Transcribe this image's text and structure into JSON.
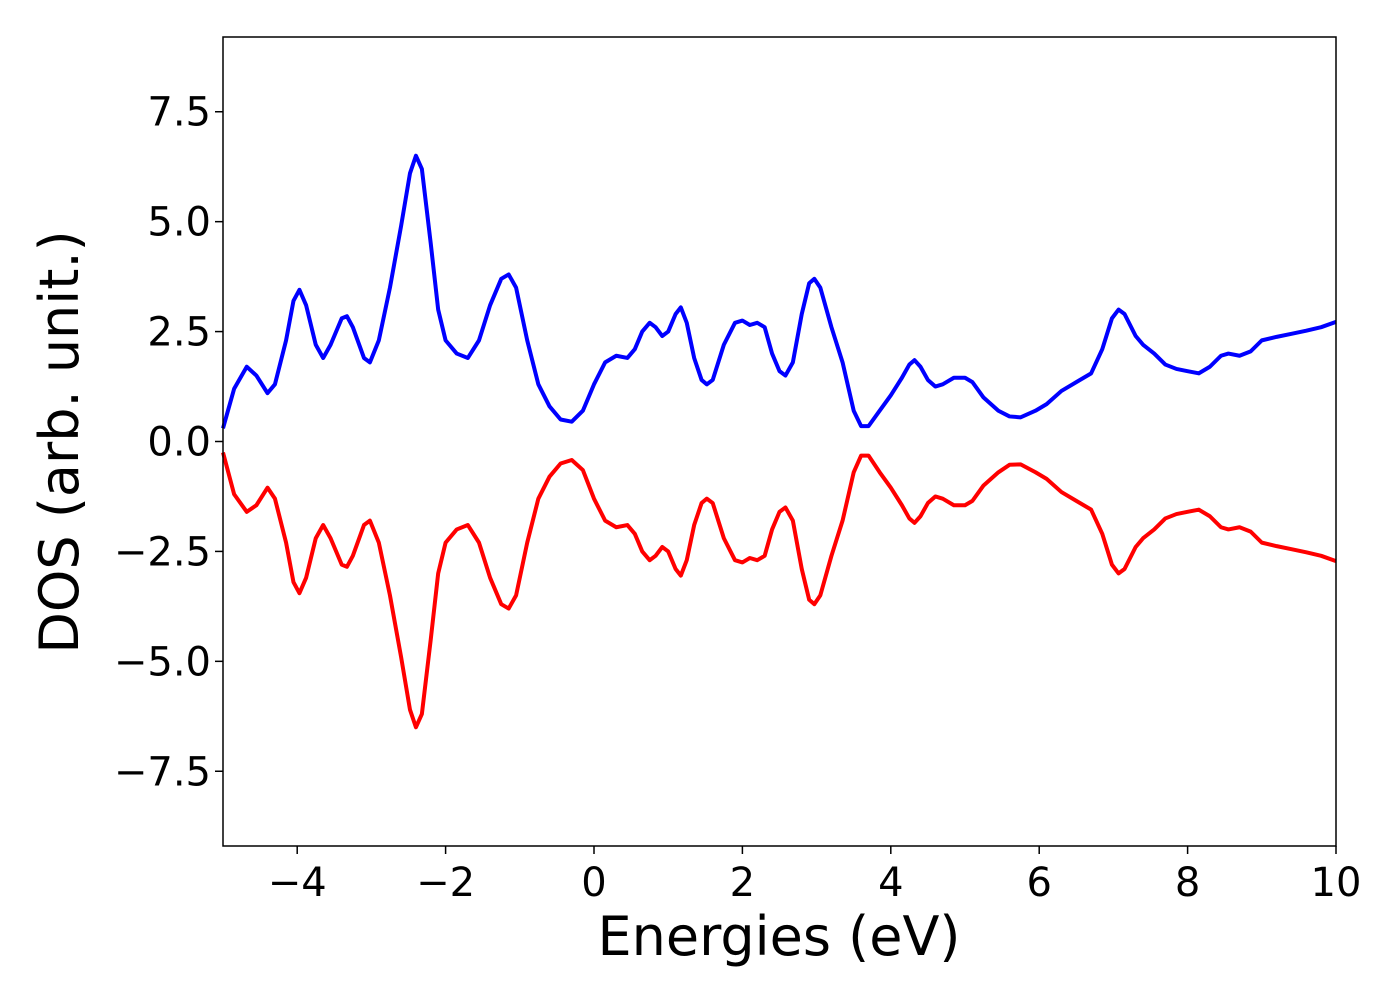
{
  "chart_data": {
    "type": "line",
    "xlabel": "Energies (eV)",
    "ylabel": "DOS (arb. unit.)",
    "xlim": [
      -5,
      10
    ],
    "ylim": [
      -9.2,
      9.2
    ],
    "xticks": [
      {
        "value": -4,
        "label": "−4"
      },
      {
        "value": -2,
        "label": "−2"
      },
      0,
      2,
      4,
      6,
      8,
      10
    ],
    "yticks": [
      {
        "value": -7.5,
        "label": "−7.5"
      },
      {
        "value": -5,
        "label": "−5.0"
      },
      {
        "value": -2.5,
        "label": "−2.5"
      },
      {
        "value": 0,
        "label": "0.0"
      },
      2.5,
      {
        "value": 5,
        "label": "5.0"
      },
      7.5
    ],
    "x": [
      -5.0,
      -4.85,
      -4.68,
      -4.55,
      -4.4,
      -4.3,
      -4.15,
      -4.05,
      -3.97,
      -3.88,
      -3.75,
      -3.65,
      -3.55,
      -3.4,
      -3.33,
      -3.25,
      -3.1,
      -3.02,
      -2.9,
      -2.75,
      -2.6,
      -2.48,
      -2.4,
      -2.32,
      -2.2,
      -2.1,
      -2.0,
      -1.85,
      -1.7,
      -1.55,
      -1.4,
      -1.25,
      -1.15,
      -1.05,
      -0.9,
      -0.75,
      -0.6,
      -0.45,
      -0.3,
      -0.15,
      0.0,
      0.15,
      0.3,
      0.45,
      0.55,
      0.65,
      0.75,
      0.83,
      0.92,
      1.0,
      1.1,
      1.17,
      1.25,
      1.35,
      1.45,
      1.52,
      1.6,
      1.75,
      1.9,
      2.0,
      2.1,
      2.2,
      2.3,
      2.4,
      2.5,
      2.58,
      2.68,
      2.8,
      2.9,
      2.97,
      3.05,
      3.2,
      3.35,
      3.5,
      3.6,
      3.7,
      3.85,
      4.0,
      4.15,
      4.25,
      4.32,
      4.4,
      4.5,
      4.6,
      4.7,
      4.85,
      5.0,
      5.1,
      5.25,
      5.45,
      5.6,
      5.75,
      5.95,
      6.1,
      6.3,
      6.5,
      6.7,
      6.85,
      6.98,
      7.07,
      7.15,
      7.3,
      7.4,
      7.55,
      7.7,
      7.85,
      8.0,
      8.15,
      8.3,
      8.45,
      8.55,
      8.7,
      8.85,
      9.0,
      9.2,
      9.4,
      9.6,
      9.8,
      10.0
    ],
    "series": [
      {
        "color": "#0000ff",
        "values": [
          0.3,
          1.2,
          1.7,
          1.5,
          1.1,
          1.3,
          2.3,
          3.2,
          3.45,
          3.1,
          2.2,
          1.9,
          2.2,
          2.8,
          2.85,
          2.6,
          1.9,
          1.8,
          2.3,
          3.5,
          4.9,
          6.1,
          6.5,
          6.2,
          4.5,
          3.0,
          2.3,
          2.0,
          1.9,
          2.3,
          3.1,
          3.7,
          3.8,
          3.5,
          2.3,
          1.3,
          0.8,
          0.5,
          0.45,
          0.7,
          1.3,
          1.8,
          1.95,
          1.9,
          2.1,
          2.5,
          2.7,
          2.6,
          2.4,
          2.5,
          2.9,
          3.05,
          2.7,
          1.9,
          1.4,
          1.3,
          1.4,
          2.2,
          2.7,
          2.75,
          2.65,
          2.7,
          2.6,
          2.0,
          1.6,
          1.5,
          1.8,
          2.9,
          3.6,
          3.7,
          3.5,
          2.6,
          1.8,
          0.7,
          0.35,
          0.35,
          0.7,
          1.05,
          1.45,
          1.75,
          1.85,
          1.7,
          1.4,
          1.25,
          1.3,
          1.45,
          1.45,
          1.35,
          1.0,
          0.7,
          0.57,
          0.55,
          0.7,
          0.85,
          1.15,
          1.35,
          1.55,
          2.1,
          2.8,
          3.0,
          2.9,
          2.4,
          2.2,
          2.0,
          1.75,
          1.65,
          1.6,
          1.55,
          1.7,
          1.95,
          2.0,
          1.95,
          2.05,
          2.3,
          2.38,
          2.45,
          2.52,
          2.6,
          2.72
        ]
      },
      {
        "color": "#ff0000",
        "values": [
          -0.25,
          -1.2,
          -1.6,
          -1.45,
          -1.05,
          -1.3,
          -2.3,
          -3.2,
          -3.45,
          -3.1,
          -2.2,
          -1.9,
          -2.2,
          -2.8,
          -2.85,
          -2.6,
          -1.9,
          -1.8,
          -2.3,
          -3.5,
          -4.9,
          -6.1,
          -6.5,
          -6.2,
          -4.5,
          -3.0,
          -2.3,
          -2.0,
          -1.9,
          -2.3,
          -3.1,
          -3.7,
          -3.8,
          -3.5,
          -2.3,
          -1.3,
          -0.8,
          -0.5,
          -0.42,
          -0.65,
          -1.3,
          -1.8,
          -1.95,
          -1.9,
          -2.1,
          -2.5,
          -2.7,
          -2.6,
          -2.4,
          -2.5,
          -2.9,
          -3.05,
          -2.7,
          -1.9,
          -1.4,
          -1.3,
          -1.4,
          -2.2,
          -2.7,
          -2.75,
          -2.65,
          -2.7,
          -2.6,
          -2.0,
          -1.6,
          -1.5,
          -1.8,
          -2.9,
          -3.6,
          -3.7,
          -3.5,
          -2.6,
          -1.8,
          -0.7,
          -0.32,
          -0.32,
          -0.7,
          -1.05,
          -1.45,
          -1.75,
          -1.85,
          -1.7,
          -1.4,
          -1.25,
          -1.3,
          -1.45,
          -1.45,
          -1.35,
          -1.0,
          -0.7,
          -0.53,
          -0.52,
          -0.7,
          -0.85,
          -1.15,
          -1.35,
          -1.55,
          -2.1,
          -2.8,
          -3.0,
          -2.9,
          -2.4,
          -2.2,
          -2.0,
          -1.75,
          -1.65,
          -1.6,
          -1.55,
          -1.7,
          -1.95,
          -2.0,
          -1.95,
          -2.05,
          -2.3,
          -2.38,
          -2.45,
          -2.52,
          -2.6,
          -2.72
        ]
      }
    ]
  }
}
